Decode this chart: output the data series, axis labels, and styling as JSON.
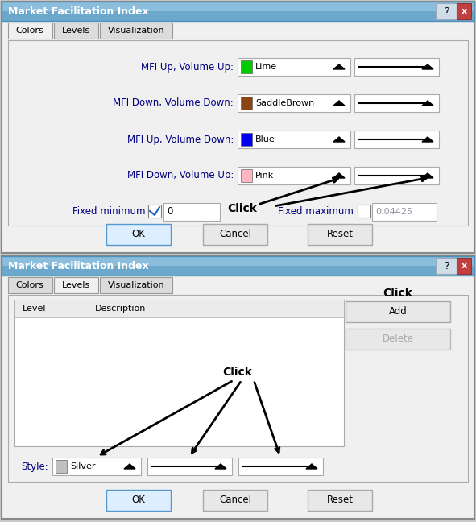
{
  "title": "Market Facilitation Index",
  "rows": [
    {
      "label": "MFI Up, Volume Up:",
      "color_name": "Lime",
      "color_hex": "#00cc00"
    },
    {
      "label": "MFI Down, Volume Down:",
      "color_name": "SaddleBrown",
      "color_hex": "#8b4513"
    },
    {
      "label": "MFI Up, Volume Down:",
      "color_name": "Blue",
      "color_hex": "#0000ee"
    },
    {
      "label": "MFI Down, Volume Up:",
      "color_name": "Pink",
      "color_hex": "#ffb6c1"
    }
  ],
  "fixed_min_label": "Fixed minimum",
  "fixed_min_value": "0",
  "fixed_max_label": "Fixed maximum",
  "fixed_max_value": "0.04425",
  "style_label": "Style:",
  "style_color_name": "Silver",
  "style_color_hex": "#c0c0c0",
  "add_button": "Add",
  "delete_button": "Delete",
  "buttons": [
    "OK",
    "Cancel",
    "Reset"
  ],
  "bg_color": "#c8c8c8",
  "dialog_bg": "#f0f0f0",
  "title_bar_fc": "#7bafd4",
  "panel_bg": "#f5f5f5",
  "tab_active_fc": "#f0f0f0",
  "tab_inactive_fc": "#dcdcdc",
  "border_lc": "#999999",
  "label_color": "#000080"
}
